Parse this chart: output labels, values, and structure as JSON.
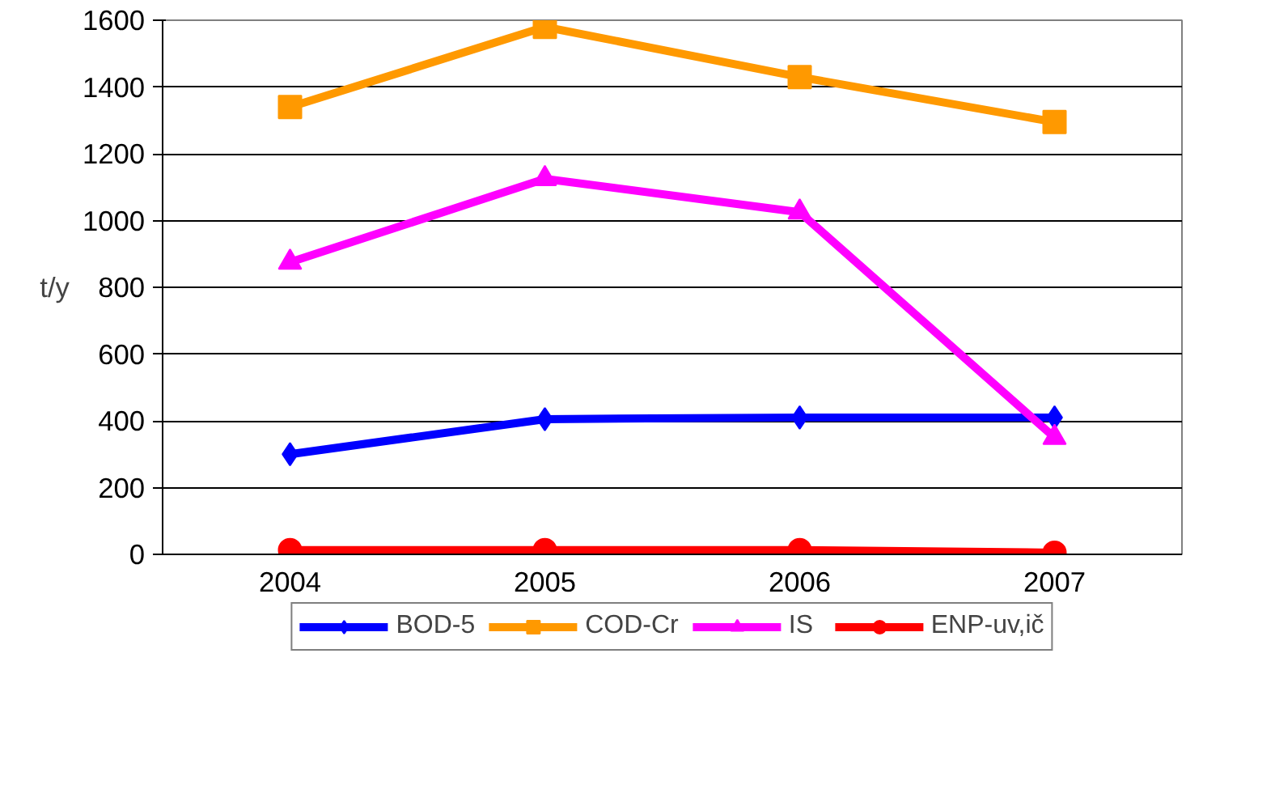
{
  "chart_data": {
    "type": "line",
    "ylabel": "t/y",
    "categories": [
      "2004",
      "2005",
      "2006",
      "2007"
    ],
    "ylim": [
      0,
      1600
    ],
    "yticks": [
      0,
      200,
      400,
      600,
      800,
      1000,
      1200,
      1400,
      1600
    ],
    "grid": "y",
    "legend": "bottom",
    "line_style": "solid",
    "series": [
      {
        "name": "BOD-5",
        "color": "#0000ff",
        "marker": "diamond",
        "values": [
          300,
          405,
          410,
          410
        ]
      },
      {
        "name": "COD-Cr",
        "color": "#ff9900",
        "marker": "square",
        "values": [
          1340,
          1580,
          1430,
          1295
        ]
      },
      {
        "name": "IS",
        "color": "#ff00ff",
        "marker": "triangle",
        "values": [
          875,
          1125,
          1025,
          350
        ]
      },
      {
        "name": "ENP-uv,ič",
        "color": "#ff0000",
        "marker": "circle",
        "values": [
          13,
          13,
          13,
          5
        ]
      }
    ]
  }
}
